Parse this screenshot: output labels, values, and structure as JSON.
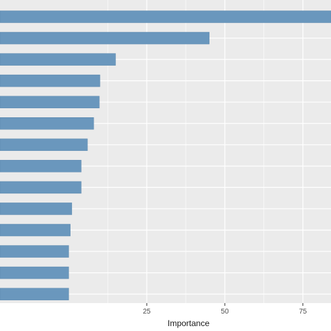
{
  "chart_data": {
    "type": "bar",
    "orientation": "horizontal",
    "title": "",
    "xlabel": "Importance",
    "ylabel": "",
    "values": [
      84,
      45,
      15,
      10,
      9.8,
      8,
      6,
      4,
      4,
      1,
      0.5,
      0,
      0,
      0
    ],
    "xlim": [
      -22,
      84
    ],
    "xticks": [
      25,
      50,
      75
    ],
    "xtick_labels": [
      "25",
      "50",
      "75"
    ],
    "grid": true,
    "bar_color": "#6a97bd",
    "panel_color": "#ebebeb",
    "grid_color": "#ffffff"
  }
}
